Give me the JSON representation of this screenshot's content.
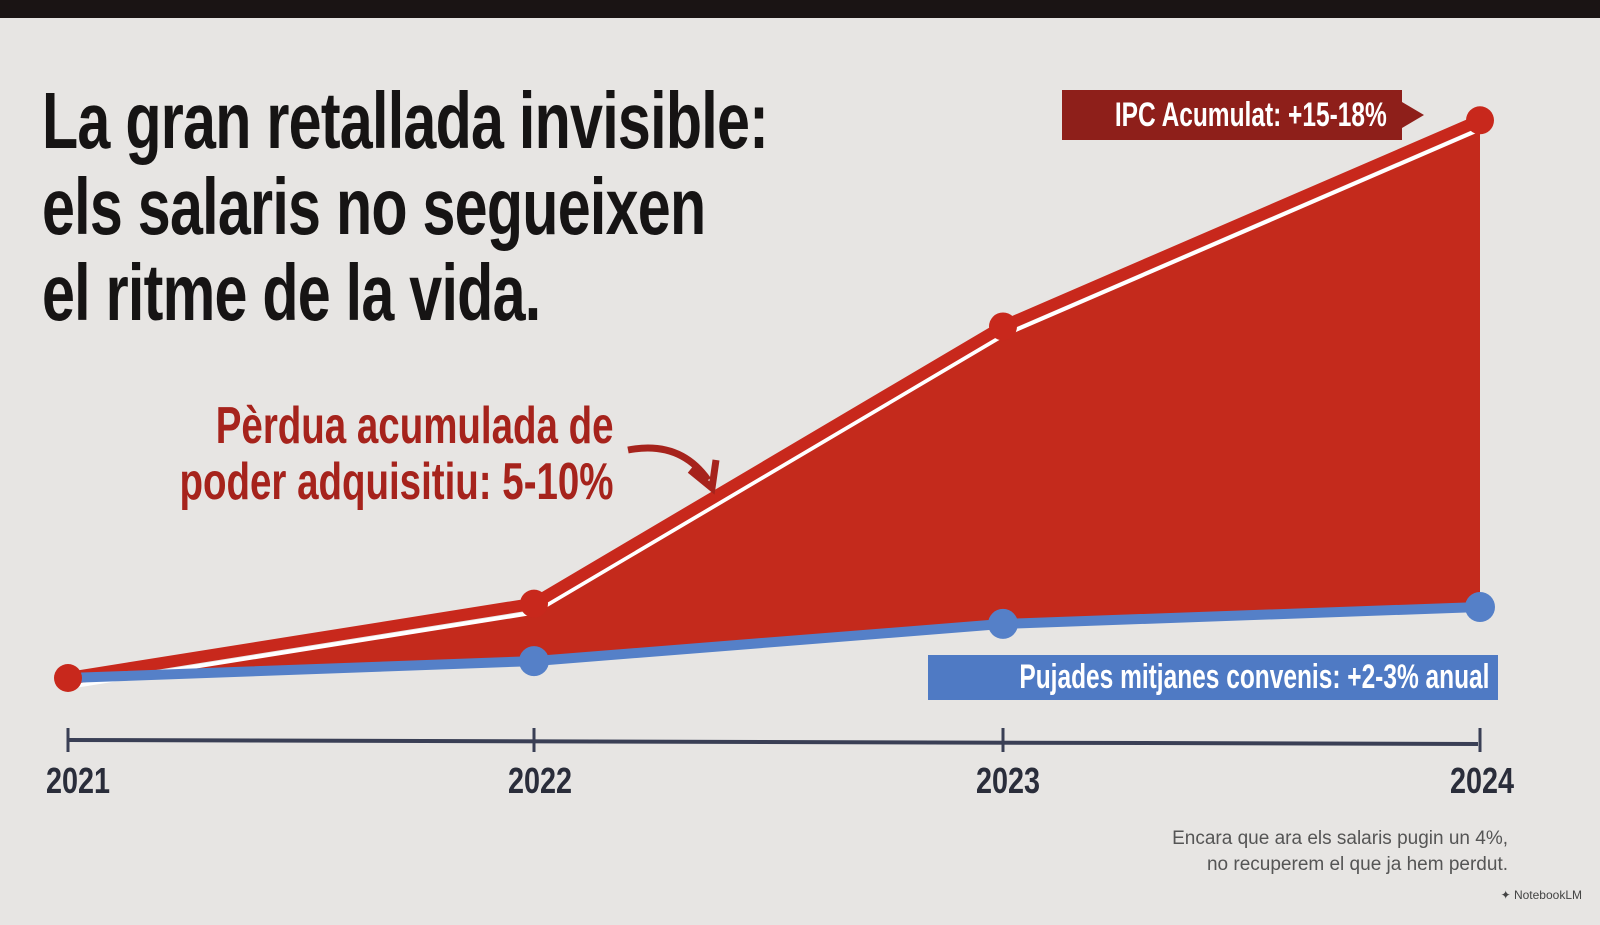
{
  "title_lines": [
    "La gran retallada invisible:",
    "els salaris no segueixen",
    "el ritme de la vida."
  ],
  "loss_label": [
    "Pèrdua acumulada de",
    "poder adquisitiu: 5-10%"
  ],
  "note": [
    "Encara que ara els salaris pugin un 4%,",
    "no recuperem el que ja hem perdut."
  ],
  "brand": "NotebookLM",
  "colors": {
    "red": "#c8281c",
    "blue": "#5580c8",
    "dark_red": "#8e1f1a"
  },
  "chart_data": {
    "type": "area",
    "x": [
      "2021",
      "2022",
      "2023",
      "2024"
    ],
    "series": [
      {
        "name": "IPC Acumulat: +15-18%",
        "values": [
          0,
          2.2,
          10.4,
          16.5
        ],
        "color": "#c8281c"
      },
      {
        "name": "Pujades mitjanes convenis: +2-3% anual",
        "values": [
          0,
          0.5,
          1.6,
          2.1
        ],
        "color": "#5580c8"
      }
    ],
    "ylim": [
      0,
      17
    ],
    "xlabel": "",
    "ylabel": "",
    "annotation": "Pèrdua acumulada de poder adquisitiu: 5-10%"
  }
}
